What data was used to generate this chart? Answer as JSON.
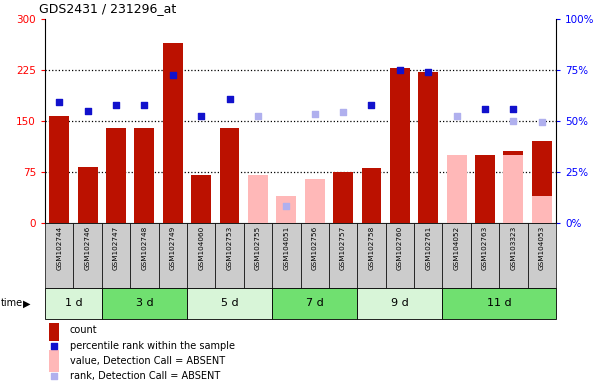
{
  "title": "GDS2431 / 231296_at",
  "samples": [
    "GSM102744",
    "GSM102746",
    "GSM102747",
    "GSM102748",
    "GSM102749",
    "GSM104060",
    "GSM102753",
    "GSM102755",
    "GSM104051",
    "GSM102756",
    "GSM102757",
    "GSM102758",
    "GSM102760",
    "GSM102761",
    "GSM104052",
    "GSM102763",
    "GSM103323",
    "GSM104053"
  ],
  "time_groups": [
    {
      "label": "1 d",
      "start": 0,
      "end": 2,
      "color": "#d8f5d8"
    },
    {
      "label": "3 d",
      "start": 2,
      "end": 5,
      "color": "#70e070"
    },
    {
      "label": "5 d",
      "start": 5,
      "end": 8,
      "color": "#d8f5d8"
    },
    {
      "label": "7 d",
      "start": 8,
      "end": 11,
      "color": "#70e070"
    },
    {
      "label": "9 d",
      "start": 11,
      "end": 14,
      "color": "#d8f5d8"
    },
    {
      "label": "11 d",
      "start": 14,
      "end": 18,
      "color": "#70e070"
    }
  ],
  "bar_values": [
    157,
    82,
    140,
    140,
    265,
    70,
    140,
    null,
    null,
    null,
    75,
    80,
    228,
    222,
    null,
    100,
    105,
    120
  ],
  "bar_absent": [
    null,
    null,
    null,
    null,
    null,
    null,
    null,
    70,
    40,
    65,
    null,
    null,
    null,
    null,
    100,
    null,
    100,
    40
  ],
  "rank_present": [
    178,
    165,
    173,
    173,
    218,
    157,
    183,
    null,
    null,
    null,
    null,
    173,
    225,
    222,
    null,
    168,
    168,
    null
  ],
  "rank_absent": [
    null,
    null,
    null,
    null,
    null,
    null,
    null,
    157,
    25,
    160,
    163,
    null,
    null,
    null,
    157,
    null,
    150,
    148
  ],
  "ylim_left": [
    0,
    300
  ],
  "ylim_right": [
    0,
    100
  ],
  "yticks_left": [
    0,
    75,
    150,
    225,
    300
  ],
  "yticks_right": [
    0,
    25,
    50,
    75,
    100
  ],
  "ytick_labels_left": [
    "0",
    "75",
    "150",
    "225",
    "300"
  ],
  "ytick_labels_right": [
    "0%",
    "25%",
    "50%",
    "75%",
    "100%"
  ],
  "bar_color_present": "#bb1100",
  "bar_color_absent": "#ffb8b8",
  "rank_color_present": "#1111cc",
  "rank_color_absent": "#b0b0ee",
  "sample_bg": "#cccccc",
  "plot_bg": "#ffffff"
}
